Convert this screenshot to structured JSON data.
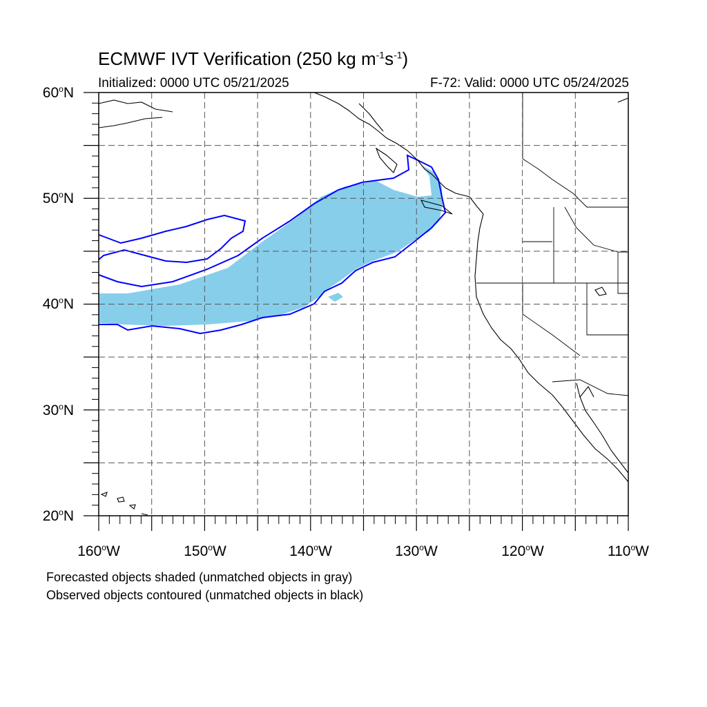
{
  "title": {
    "main": "ECMWF IVT Verification (250 kg m",
    "exp1": "-1",
    "mid": "s",
    "exp2": "-1",
    "end": ")"
  },
  "subtitle": {
    "left": "Initialized: 0000 UTC 05/21/2025",
    "right": "F-72: Valid: 0000 UTC 05/24/2025"
  },
  "map": {
    "lon_range": [
      -160,
      -110
    ],
    "lat_range": [
      20,
      60
    ],
    "grid": "dashed",
    "lat_labels": [
      {
        "text": "60",
        "deg": "o",
        "hemi": "N"
      },
      {
        "text": "50",
        "deg": "o",
        "hemi": "N"
      },
      {
        "text": "40",
        "deg": "o",
        "hemi": "N"
      },
      {
        "text": "30",
        "deg": "o",
        "hemi": "N"
      },
      {
        "text": "20",
        "deg": "o",
        "hemi": "N"
      }
    ],
    "lon_labels": [
      {
        "text": "160",
        "deg": "o",
        "hemi": "W"
      },
      {
        "text": "150",
        "deg": "o",
        "hemi": "W"
      },
      {
        "text": "140",
        "deg": "o",
        "hemi": "W"
      },
      {
        "text": "130",
        "deg": "o",
        "hemi": "W"
      },
      {
        "text": "120",
        "deg": "o",
        "hemi": "W"
      },
      {
        "text": "110",
        "deg": "o",
        "hemi": "W"
      }
    ],
    "colors": {
      "forecast_fill": "#87ceeb",
      "observed_contour": "#0000ff",
      "coastline": "#000000",
      "grid": "#555555"
    }
  },
  "notes": {
    "line1": "Forecasted objects shaded (unmatched objects in gray)",
    "line2": "Observed objects contoured (unmatched objects in black)"
  }
}
